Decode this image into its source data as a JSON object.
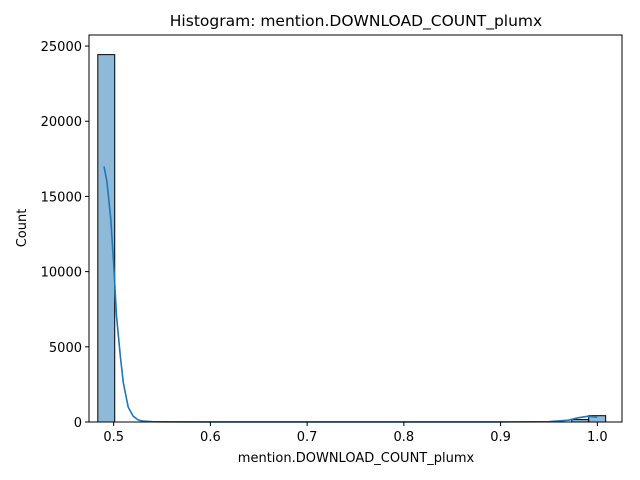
{
  "chart_data": {
    "type": "bar",
    "title": "Histogram: mention.DOWNLOAD_COUNT_plumx",
    "xlabel": "mention.DOWNLOAD_COUNT_plumx",
    "ylabel": "Count",
    "xlim": [
      0.4745,
      1.0255
    ],
    "ylim": [
      0,
      25735
    ],
    "x_ticks": [
      0.5,
      0.6,
      0.7,
      0.8,
      0.9,
      1.0
    ],
    "x_tick_labels": [
      "0.5",
      "0.6",
      "0.7",
      "0.8",
      "0.9",
      "1.0"
    ],
    "y_ticks": [
      0,
      5000,
      10000,
      15000,
      20000,
      25000
    ],
    "y_tick_labels": [
      "0",
      "5000",
      "10000",
      "15000",
      "20000",
      "25000"
    ],
    "bins": {
      "start": 0.4836,
      "width": 0.0175,
      "counts": [
        24430,
        0,
        0,
        0,
        0,
        0,
        0,
        0,
        0,
        0,
        0,
        0,
        0,
        0,
        0,
        0,
        0,
        0,
        0,
        0,
        0,
        0,
        0,
        0,
        0,
        0,
        0,
        0,
        160,
        420
      ]
    },
    "kde": {
      "x": [
        0.49,
        0.493,
        0.497,
        0.5,
        0.503,
        0.507,
        0.51,
        0.515,
        0.52,
        0.525,
        0.53,
        0.54,
        0.55,
        0.6,
        0.7,
        0.8,
        0.9,
        0.95,
        0.97,
        0.98,
        0.99,
        1.0
      ],
      "y": [
        17000,
        16000,
        13500,
        10500,
        7000,
        4300,
        2600,
        1000,
        400,
        150,
        60,
        20,
        10,
        5,
        5,
        5,
        5,
        20,
        120,
        280,
        380,
        320
      ]
    },
    "colors": {
      "bar_fill": "#8fb9d8",
      "bar_edge": "#000000",
      "kde_line": "#1f77b4"
    },
    "grid": false,
    "legend": "none"
  }
}
